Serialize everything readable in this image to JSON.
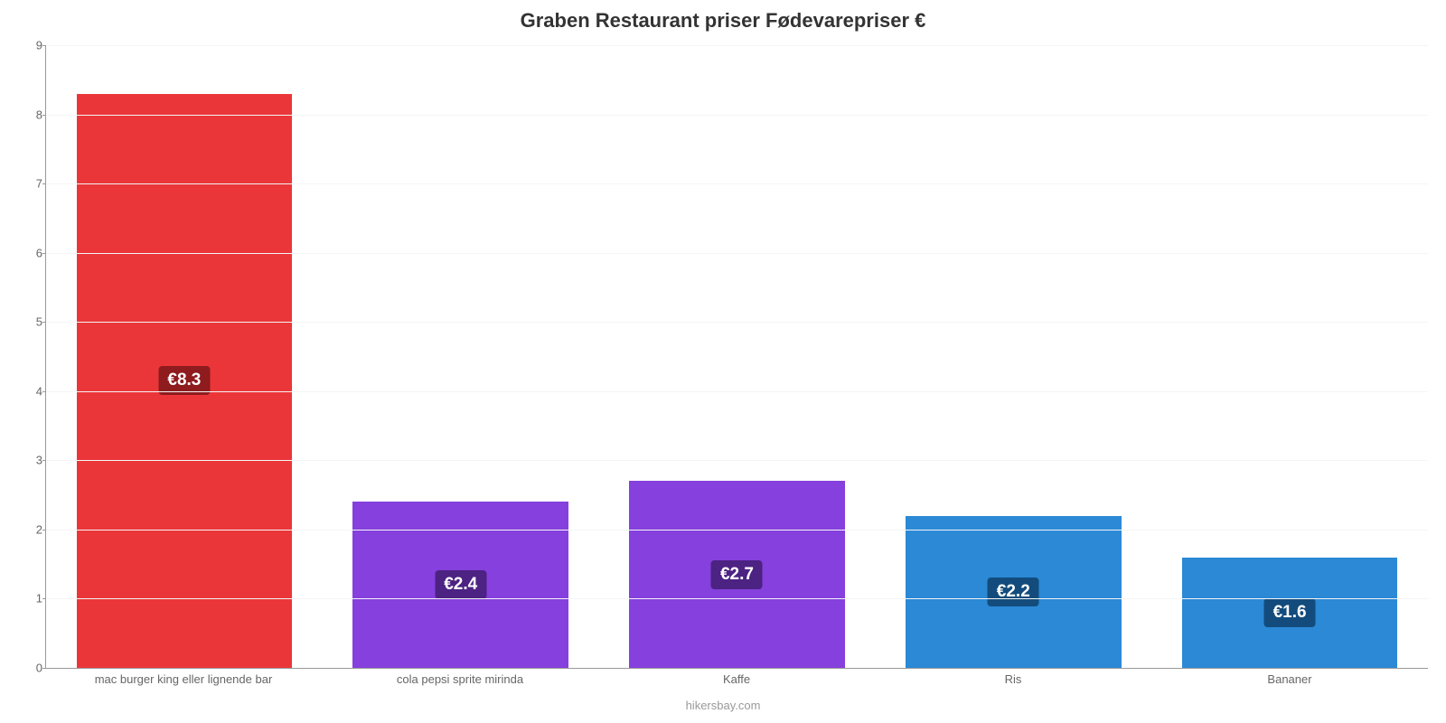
{
  "chart": {
    "type": "bar",
    "title": "Graben Restaurant priser Fødevarepriser €",
    "title_fontsize": 22,
    "title_color": "#333333",
    "attribution": "hikersbay.com",
    "attribution_color": "#999999",
    "background_color": "#ffffff",
    "grid_color": "#f5f5f5",
    "axis_color": "#999999",
    "tick_color": "#666666",
    "tick_fontsize": 13,
    "ylim": [
      0,
      9
    ],
    "ytick_step": 1,
    "currency_prefix": "€",
    "bar_width": 0.78,
    "label_fontsize": 19,
    "categories": [
      "mac burger king eller lignende bar",
      "cola pepsi sprite mirinda",
      "Kaffe",
      "Ris",
      "Bananer"
    ],
    "values": [
      8.3,
      2.4,
      2.7,
      2.2,
      1.6
    ],
    "bar_colors": [
      "#eb3639",
      "#8540dd",
      "#8540dd",
      "#2b89d6",
      "#2b89d6"
    ],
    "label_bg_colors": [
      "#8e1b1e",
      "#4c2282",
      "#4c2282",
      "#134c7c",
      "#134c7c"
    ]
  }
}
